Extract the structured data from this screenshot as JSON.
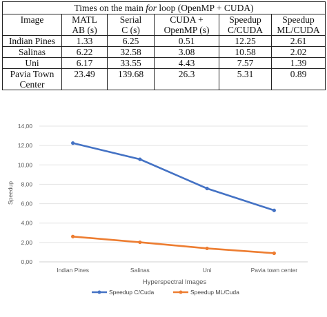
{
  "table": {
    "title_pre": "Times on the main ",
    "title_italic": "for",
    "title_post": " loop (OpenMP + CUDA)",
    "headers": [
      [
        "Image"
      ],
      [
        "MATL",
        "AB (s)"
      ],
      [
        "Serial",
        "C (s)"
      ],
      [
        "CUDA +",
        "OpenMP (s)"
      ],
      [
        "Speedup",
        "C/CUDA"
      ],
      [
        "Speedup",
        "ML/CUDA"
      ]
    ],
    "rows": [
      {
        "name": [
          "Indian Pines"
        ],
        "cells": [
          "1.33",
          "6.25",
          "0.51",
          "12.25",
          "2.61"
        ]
      },
      {
        "name": [
          "Salinas"
        ],
        "cells": [
          "6.22",
          "32.58",
          "3.08",
          "10.58",
          "2.02"
        ]
      },
      {
        "name": [
          "Uni"
        ],
        "cells": [
          "6.17",
          "33.55",
          "4.43",
          "7.57",
          "1.39"
        ]
      },
      {
        "name": [
          "Pavia Town",
          "Center"
        ],
        "cells": [
          "23.49",
          "139.68",
          "26.3",
          "5.31",
          "0.89"
        ]
      }
    ]
  },
  "chart_data": {
    "type": "line",
    "categories": [
      "Indian Pines",
      "Salinas",
      "Uni",
      "Pavia town center"
    ],
    "series": [
      {
        "name": "Speedup C/Cuda",
        "values": [
          12.25,
          10.58,
          7.57,
          5.31
        ],
        "color": "#4472C4"
      },
      {
        "name": "Speedup ML/Cuda",
        "values": [
          2.61,
          2.02,
          1.39,
          0.89
        ],
        "color": "#ED7D31"
      }
    ],
    "yticks": [
      "0,00",
      "2,00",
      "4,00",
      "6,00",
      "8,00",
      "10,00",
      "12,00",
      "14,00"
    ],
    "ylim": [
      0,
      14
    ],
    "xlabel": "Hyperspectral Images",
    "ylabel": "Speedup",
    "grid": true,
    "legend": "bottom"
  }
}
